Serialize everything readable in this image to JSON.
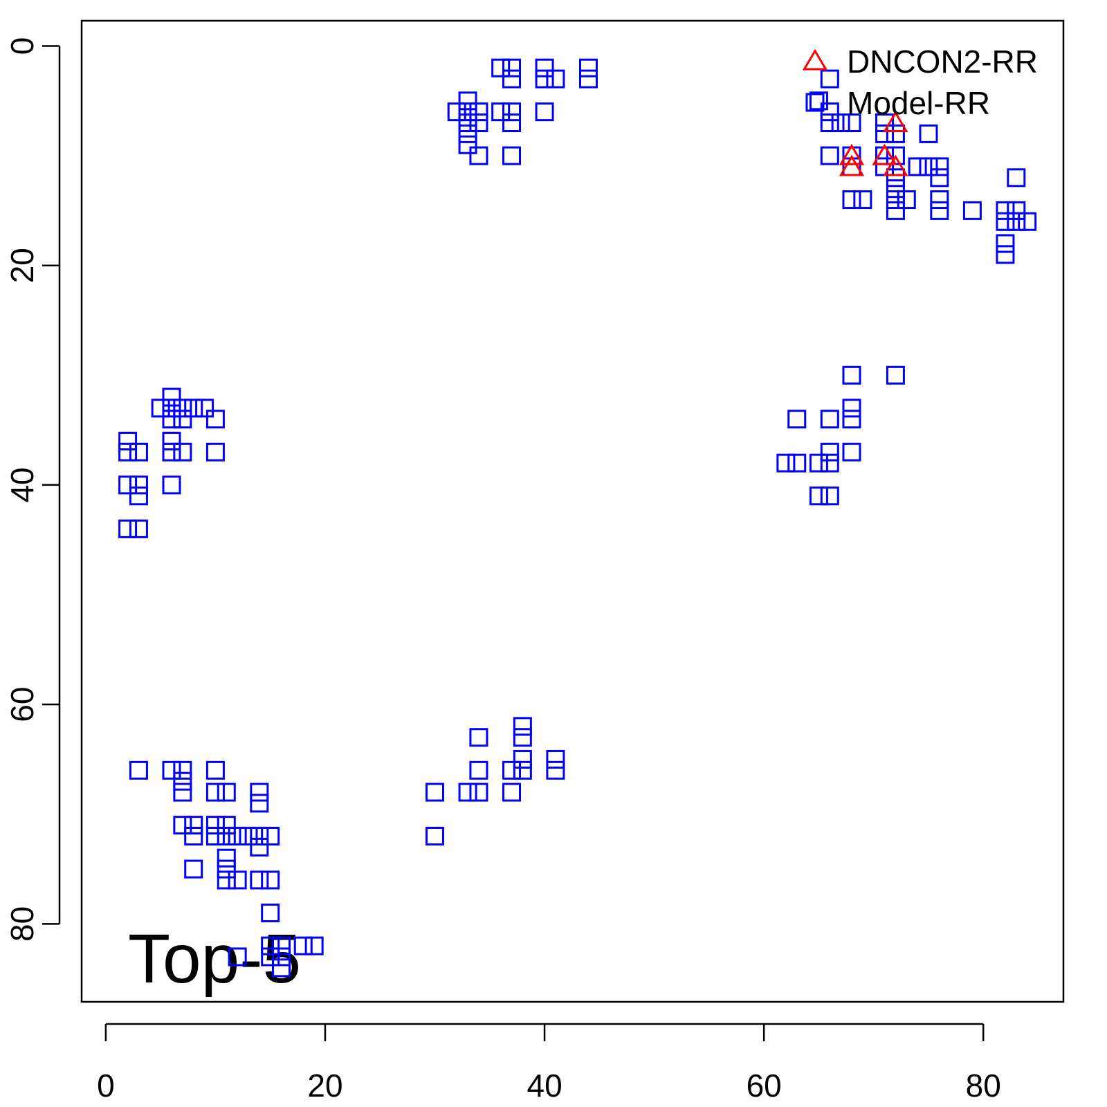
{
  "chart_data": {
    "type": "scatter",
    "annotation": "Top-5",
    "xlim": [
      -2.2,
      87.3
    ],
    "ylim": [
      87.1,
      -2.3
    ],
    "xticks": [
      0,
      20,
      40,
      60,
      80
    ],
    "yticks": [
      0,
      20,
      40,
      60,
      80
    ],
    "legend": "topright",
    "series": [
      {
        "name": "DNCON2-RR",
        "color": "#ff0000",
        "marker": "triangle",
        "x": [
          72,
          68,
          68,
          71,
          72
        ],
        "y": [
          7,
          10,
          11,
          10,
          11
        ]
      },
      {
        "name": "Model-RR",
        "color": "#0000ff",
        "marker": "square",
        "x": [
          36,
          37,
          37,
          40,
          40,
          41,
          44,
          44,
          33,
          32,
          33,
          34,
          33,
          34,
          33,
          33,
          34,
          36,
          37,
          37,
          37,
          40,
          66,
          65,
          66,
          66,
          67,
          68,
          66,
          68,
          68,
          71,
          71,
          72,
          71,
          72,
          71,
          72,
          72,
          72,
          72,
          73,
          74,
          75,
          75,
          76,
          76,
          76,
          76,
          68,
          69,
          79,
          82,
          82,
          83,
          83,
          84,
          83,
          82,
          82,
          68,
          72,
          68,
          68,
          63,
          66,
          66,
          68,
          62,
          63,
          65,
          66,
          65,
          66,
          6,
          5,
          6,
          7,
          8,
          9,
          6,
          7,
          10,
          2,
          6,
          2,
          3,
          6,
          7,
          10,
          2,
          3,
          6,
          3,
          2,
          3,
          3,
          6,
          7,
          10,
          7,
          7,
          10,
          11,
          14,
          14,
          7,
          8,
          10,
          11,
          8,
          10,
          11,
          12,
          13,
          14,
          15,
          14,
          11,
          11,
          8,
          11,
          12,
          14,
          15,
          15,
          15,
          16,
          18,
          19,
          12,
          15,
          16,
          16,
          38,
          38,
          34,
          38,
          41,
          34,
          37,
          38,
          41,
          30,
          33,
          34,
          37,
          30
        ],
        "y": [
          2,
          2,
          3,
          2,
          3,
          3,
          2,
          3,
          5,
          6,
          6,
          6,
          7,
          7,
          8,
          9,
          10,
          6,
          6,
          7,
          10,
          6,
          3,
          5,
          6,
          7,
          7,
          7,
          10,
          10,
          11,
          7,
          8,
          8,
          10,
          10,
          11,
          12,
          13,
          14,
          15,
          14,
          11,
          11,
          8,
          11,
          12,
          14,
          15,
          14,
          14,
          15,
          15,
          16,
          15,
          16,
          16,
          12,
          18,
          19,
          30,
          30,
          33,
          34,
          34,
          34,
          37,
          37,
          38,
          38,
          38,
          38,
          41,
          41,
          32,
          33,
          33,
          33,
          33,
          33,
          34,
          34,
          34,
          36,
          36,
          37,
          37,
          37,
          37,
          37,
          40,
          40,
          40,
          41,
          44,
          44,
          66,
          66,
          66,
          66,
          67,
          68,
          68,
          68,
          68,
          69,
          71,
          71,
          71,
          71,
          72,
          72,
          72,
          72,
          72,
          72,
          72,
          73,
          74,
          75,
          75,
          76,
          76,
          76,
          76,
          79,
          82,
          82,
          82,
          82,
          83,
          83,
          83,
          84,
          62,
          63,
          63,
          65,
          65,
          66,
          66,
          66,
          66,
          68,
          68,
          68,
          68,
          72
        ]
      }
    ]
  }
}
